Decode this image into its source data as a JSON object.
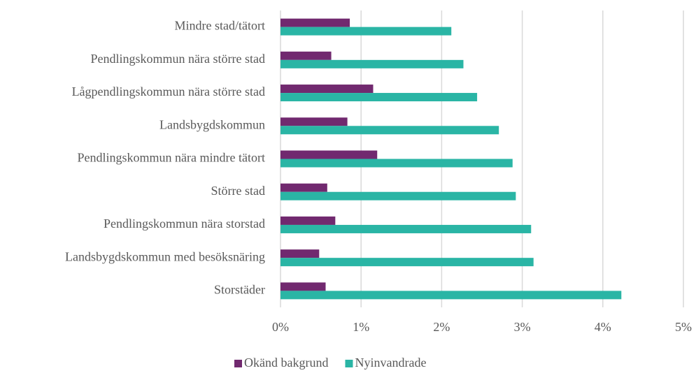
{
  "chart_data": {
    "type": "hbar",
    "categories": [
      "Mindre stad/tätort",
      "Pendlingskommun nära större stad",
      "Lågpendlingskommun nära större stad",
      "Landsbygdskommun",
      "Pendlingskommun nära mindre tätort",
      "Större stad",
      "Pendlingskommun nära storstad",
      "Landsbygdskommun med besöksnäring",
      "Storstäder"
    ],
    "series": [
      {
        "name": "Okänd bakgrund",
        "color": "#71296f",
        "values": [
          0.86,
          0.63,
          1.15,
          0.83,
          1.2,
          0.58,
          0.68,
          0.48,
          0.56
        ]
      },
      {
        "name": "Nyinvandrade",
        "color": "#2ab5a5",
        "values": [
          2.12,
          2.27,
          2.44,
          2.71,
          2.88,
          2.92,
          3.11,
          3.14,
          4.23
        ]
      }
    ],
    "xlim": [
      0,
      5
    ],
    "xticks": [
      {
        "value": 0,
        "label": "0%"
      },
      {
        "value": 1,
        "label": "1%"
      },
      {
        "value": 2,
        "label": "2%"
      },
      {
        "value": 3,
        "label": "3%"
      },
      {
        "value": 4,
        "label": "4%"
      },
      {
        "value": 5,
        "label": "5%"
      }
    ],
    "grid": true,
    "legend": "bottom"
  }
}
